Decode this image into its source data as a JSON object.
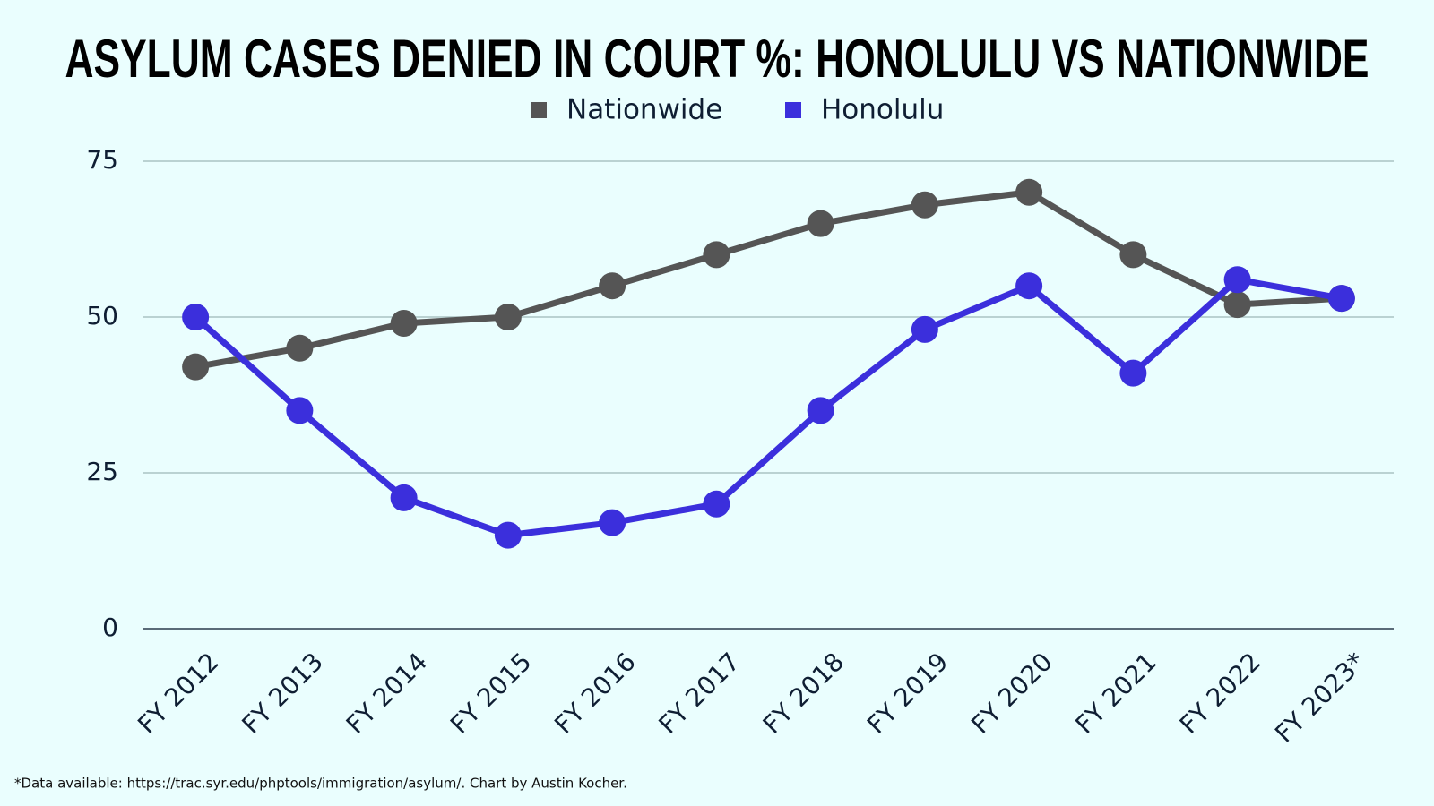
{
  "chart_data": {
    "type": "line",
    "title": "ASYLUM CASES DENIED IN COURT %: HONOLULU VS NATIONWIDE",
    "categories": [
      "FY 2012",
      "FY 2013",
      "FY 2014",
      "FY 2015",
      "FY 2016",
      "FY 2017",
      "FY 2018",
      "FY 2019",
      "FY 2020",
      "FY 2021",
      "FY 2022",
      "FY 2023*"
    ],
    "series": [
      {
        "name": "Nationwide",
        "color": "#555555",
        "values": [
          42,
          45,
          49,
          50,
          55,
          60,
          65,
          68,
          70,
          60,
          52,
          53
        ]
      },
      {
        "name": "Honolulu",
        "color": "#3b2fdc",
        "values": [
          50,
          35,
          21,
          15,
          17,
          20,
          35,
          48,
          55,
          41,
          56,
          53
        ]
      }
    ],
    "ylim": [
      0,
      75
    ],
    "yticks": [
      0,
      25,
      50,
      75
    ],
    "grid": true,
    "footnote": "*Data available: https://trac.syr.edu/phptools/immigration/asylum/. Chart by Austin Kocher."
  }
}
